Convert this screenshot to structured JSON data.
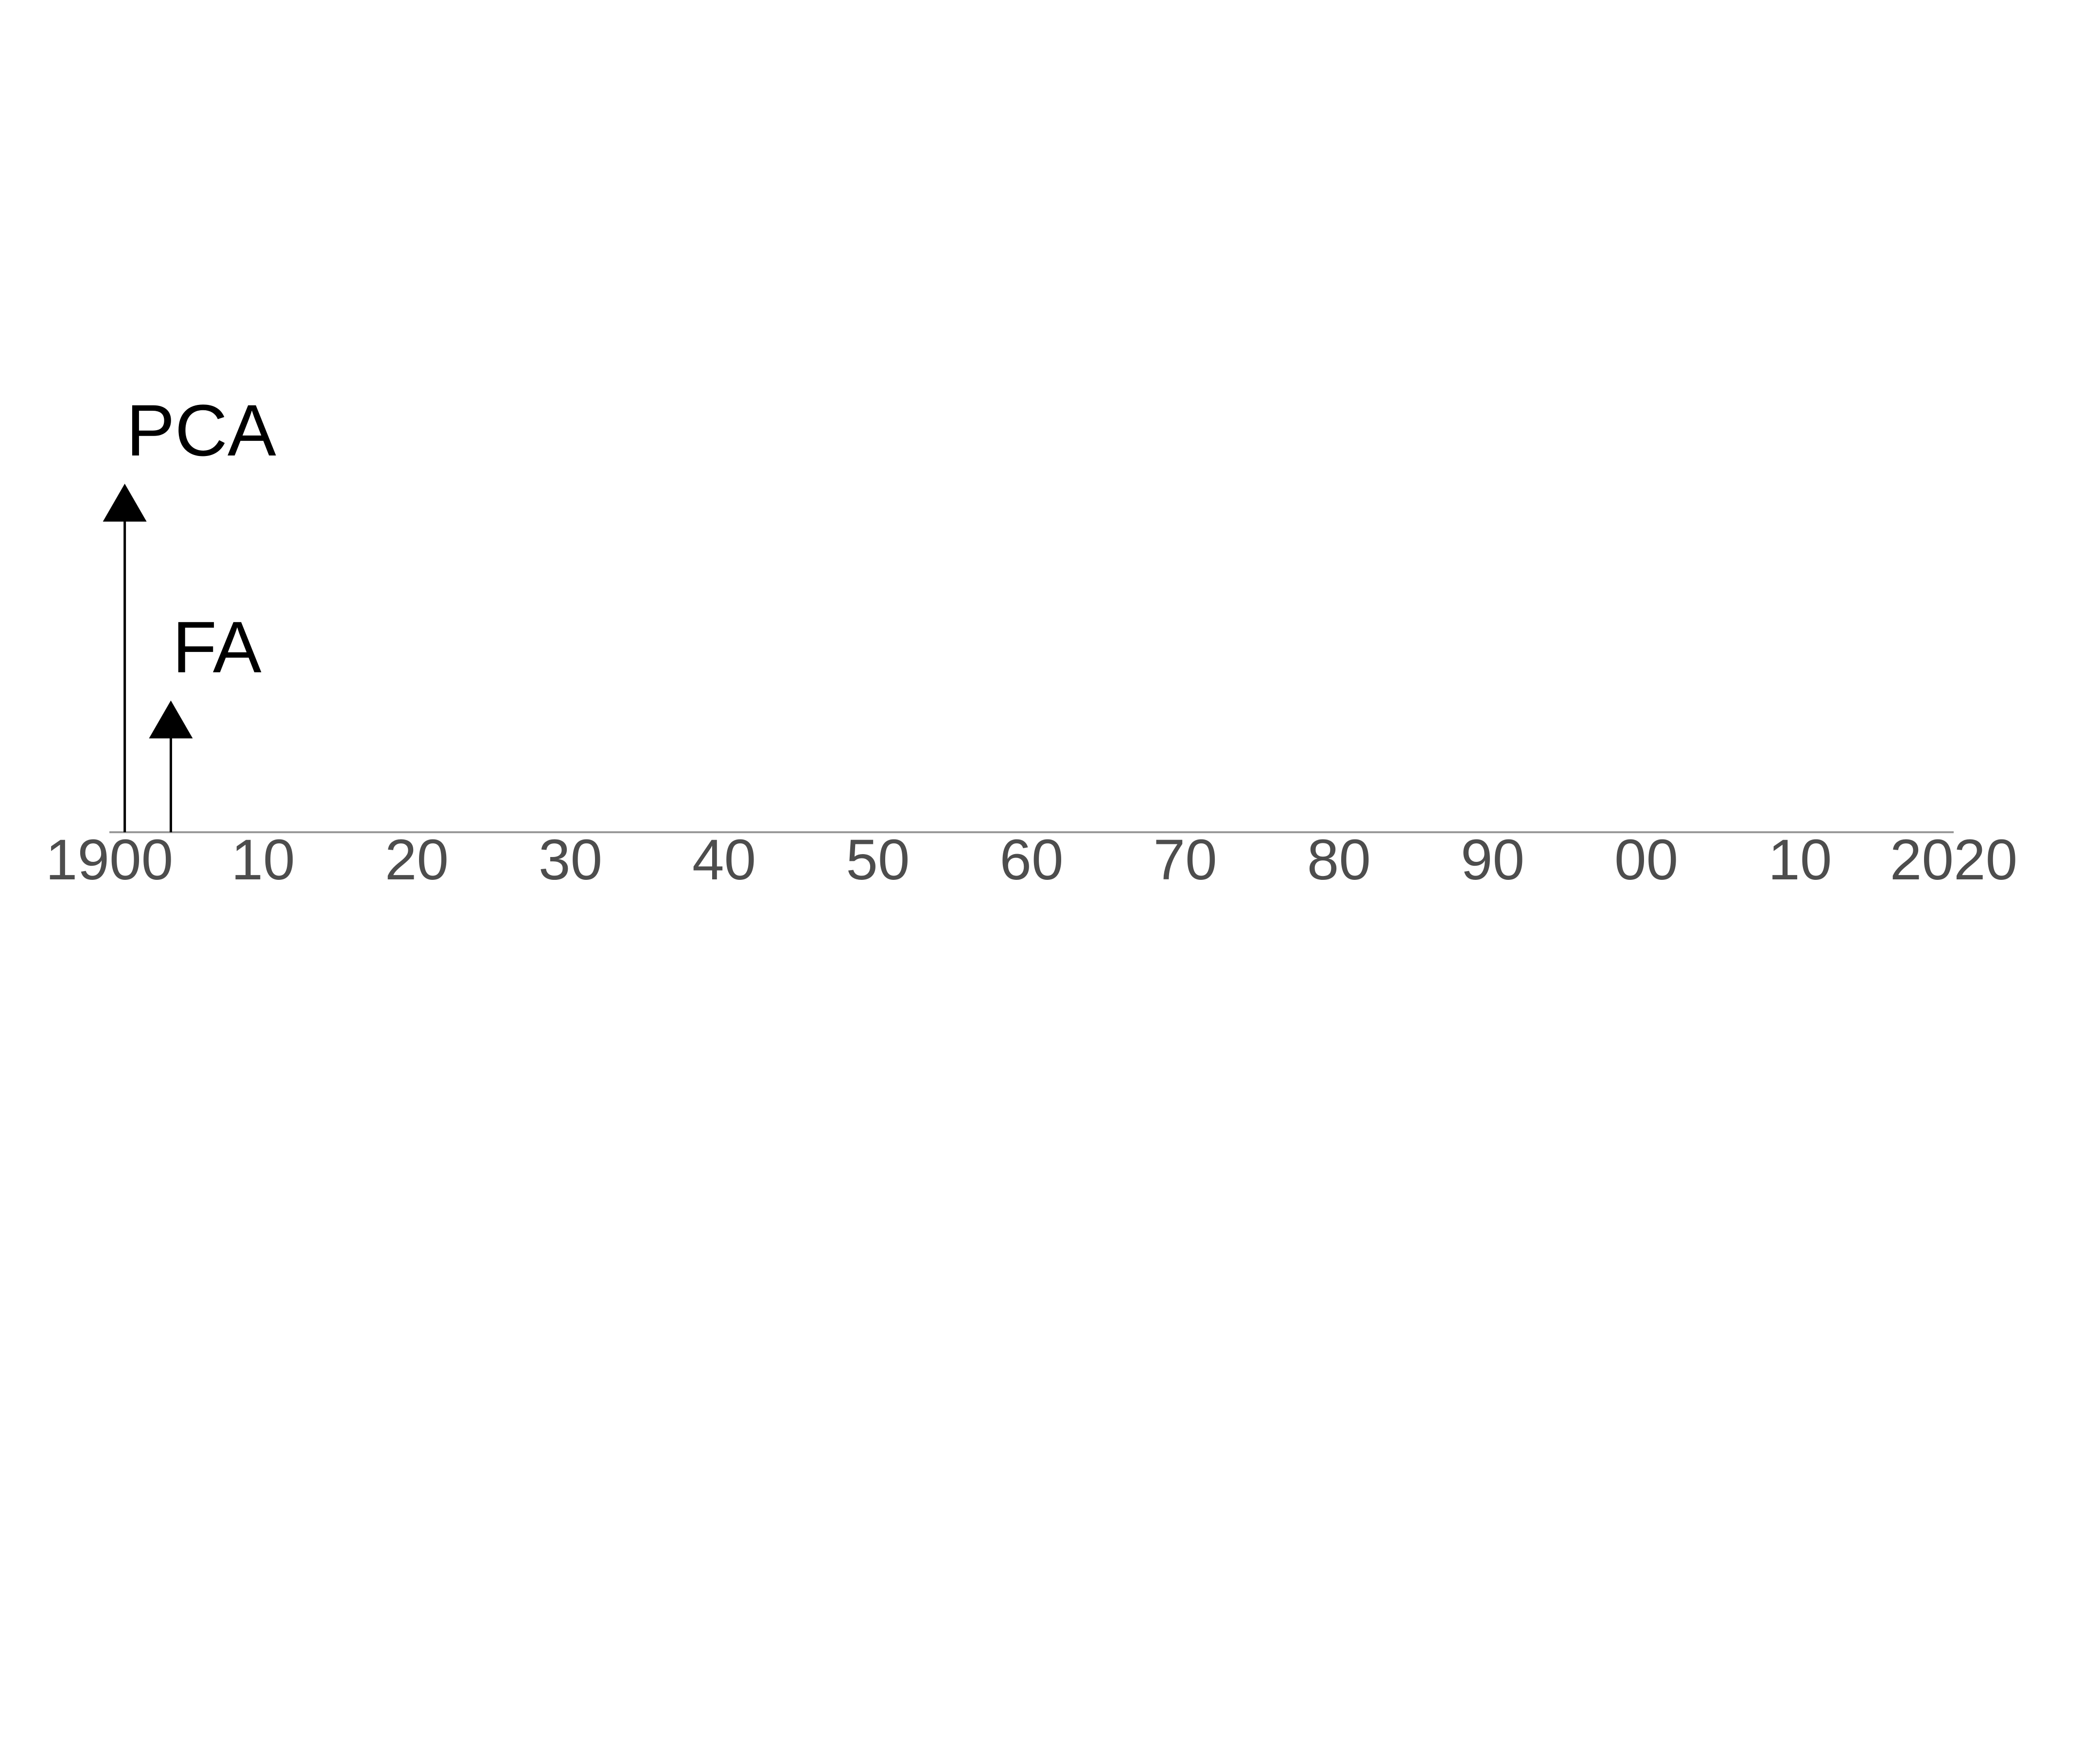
{
  "chart_data": {
    "type": "timeline",
    "title": "",
    "xlabel": "",
    "ylabel": "",
    "xlim": [
      1900,
      2020
    ],
    "ticks": [
      {
        "value": 1900,
        "label": "1900"
      },
      {
        "value": 1910,
        "label": "10"
      },
      {
        "value": 1920,
        "label": "20"
      },
      {
        "value": 1930,
        "label": "30"
      },
      {
        "value": 1940,
        "label": "40"
      },
      {
        "value": 1950,
        "label": "50"
      },
      {
        "value": 1960,
        "label": "60"
      },
      {
        "value": 1970,
        "label": "70"
      },
      {
        "value": 1980,
        "label": "80"
      },
      {
        "value": 1990,
        "label": "90"
      },
      {
        "value": 2000,
        "label": "00"
      },
      {
        "value": 2010,
        "label": "10"
      },
      {
        "value": 2020,
        "label": "2020"
      }
    ],
    "events": [
      {
        "label": "PCA",
        "year": 1901,
        "level": 2
      },
      {
        "label": "FA",
        "year": 1904,
        "level": 1
      }
    ],
    "grid": false,
    "colors": {
      "axis": "#999999",
      "arrow": "#000000",
      "tick_text": "#4d4d4d",
      "event_text": "#000000"
    }
  }
}
